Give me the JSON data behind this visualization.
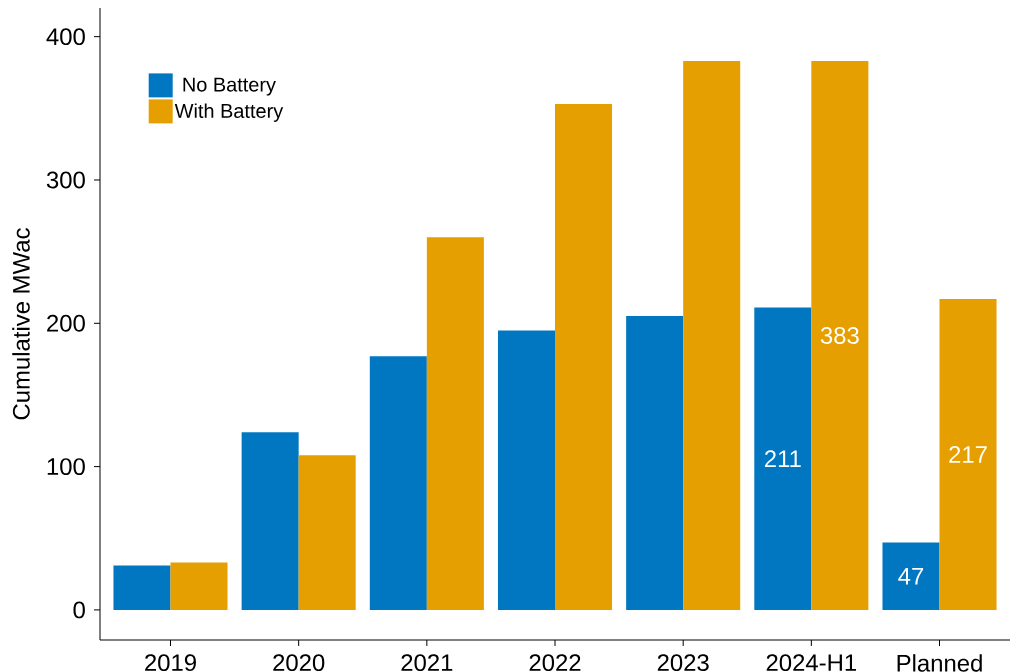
{
  "chart_data": {
    "type": "bar",
    "ylabel": "Cumulative MWac",
    "categories": [
      "2019",
      "2020",
      "2021",
      "2022",
      "2023",
      "2024-H1",
      "Planned"
    ],
    "series": [
      {
        "name": "No Battery",
        "color": "#0077c0",
        "values": [
          31,
          124,
          177,
          195,
          205,
          211,
          47
        ],
        "value_labels": [
          null,
          null,
          null,
          null,
          null,
          "211",
          "47"
        ]
      },
      {
        "name": "With Battery",
        "color": "#e69f00",
        "values": [
          33,
          108,
          260,
          353,
          383,
          383,
          217
        ],
        "value_labels": [
          null,
          null,
          null,
          null,
          null,
          "383",
          "217"
        ]
      }
    ],
    "ylim": [
      -21,
      420
    ],
    "yticks": [
      0,
      100,
      200,
      300,
      400
    ],
    "grid": false,
    "legend": "top left"
  }
}
